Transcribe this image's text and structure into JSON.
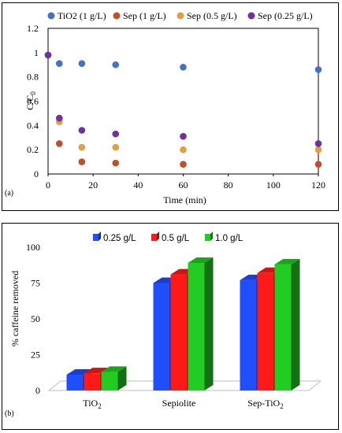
{
  "chart_data": [
    {
      "type": "scatter",
      "panel_label": "(a)",
      "xlabel": "Time (min)",
      "ylabel_main": "C/C",
      "ylabel_sub": "0",
      "xlim": [
        0,
        120
      ],
      "ylim": [
        0,
        1.2
      ],
      "xticks": [
        "0",
        "20",
        "40",
        "60",
        "80",
        "100",
        "120"
      ],
      "yticks": [
        "0",
        "0.2",
        "0.4",
        "0.6",
        "0.8",
        "1",
        "1.2"
      ],
      "xtick_values": [
        0,
        20,
        40,
        60,
        80,
        100,
        120
      ],
      "ytick_values": [
        0,
        0.2,
        0.4,
        0.6,
        0.8,
        1.0,
        1.2
      ],
      "grid": false,
      "legend_position": "top",
      "series": [
        {
          "name": "TiO2 (1 g/L)",
          "color": "#4472c4",
          "x": [
            0,
            5,
            15,
            30,
            60,
            120
          ],
          "y": [
            0.98,
            0.91,
            0.91,
            0.9,
            0.88,
            0.86
          ]
        },
        {
          "name": "Sep (1 g/L)",
          "color": "#c0502a",
          "x": [
            5,
            15,
            30,
            60,
            120
          ],
          "y": [
            0.25,
            0.1,
            0.09,
            0.08,
            0.08
          ]
        },
        {
          "name": "Sep (0.5 g/L)",
          "color": "#e0a040",
          "x": [
            5,
            15,
            30,
            60,
            120
          ],
          "y": [
            0.43,
            0.22,
            0.22,
            0.2,
            0.2
          ]
        },
        {
          "name": "Sep (0.25 g/L)",
          "color": "#7030a0",
          "x": [
            0,
            5,
            15,
            30,
            60,
            120
          ],
          "y": [
            0.98,
            0.46,
            0.36,
            0.33,
            0.31,
            0.25
          ]
        }
      ]
    },
    {
      "type": "bar",
      "panel_label": "(b)",
      "ylabel": "% caffeine  removed",
      "ylim": [
        0,
        100
      ],
      "yticks": [
        "0",
        "25",
        "50",
        "75",
        "100"
      ],
      "ytick_values": [
        0,
        25,
        50,
        75,
        100
      ],
      "categories": [
        "TiO2",
        "Sepiolite",
        "Sep-TiO2"
      ],
      "category_labels": [
        {
          "main": "TiO",
          "sub": "2",
          "rest": ""
        },
        {
          "main": "Sepiolite",
          "sub": "",
          "rest": ""
        },
        {
          "main": "Sep-TiO",
          "sub": "2",
          "rest": ""
        }
      ],
      "legend_position": "top",
      "series": [
        {
          "name": "0.25 g/L",
          "color": "#1f4fff",
          "values": [
            11,
            75,
            77
          ]
        },
        {
          "name": "0.5 g/L",
          "color": "#ff1a1a",
          "values": [
            12,
            81,
            82
          ]
        },
        {
          "name": "1.0 g/L",
          "color": "#22cc22",
          "values": [
            13,
            89,
            88
          ]
        }
      ]
    }
  ]
}
